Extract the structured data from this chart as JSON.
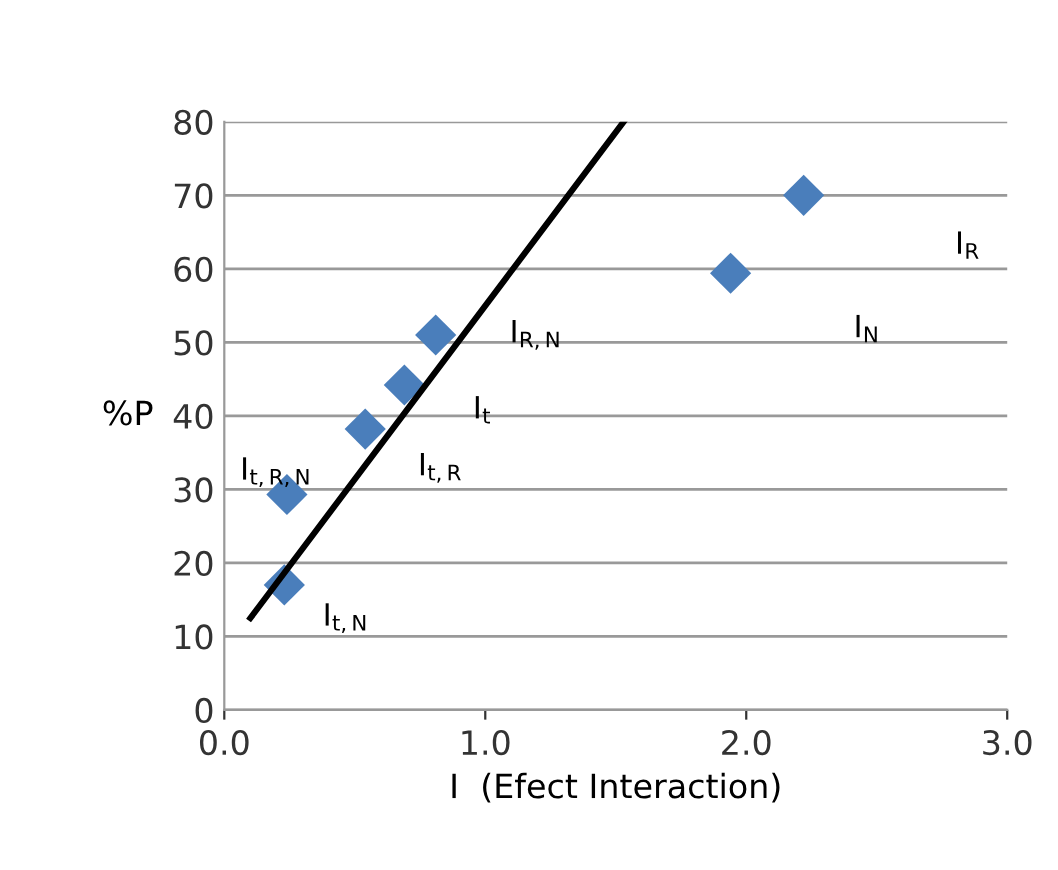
{
  "chart_data": {
    "type": "scatter",
    "xlabel": "I  (Efect Interaction)",
    "ylabel": "%P",
    "series": [
      {
        "color": "#4a7ebb",
        "marker": "diamond",
        "x": [
          0.23,
          0.24,
          0.54,
          0.69,
          0.81,
          1.94,
          2.22
        ],
        "values": [
          17,
          29.3,
          38.2,
          44.2,
          51,
          59.4,
          70
        ]
      },
      {
        "type": "line",
        "color": "#000000",
        "marker": "none",
        "line_style": "solid",
        "x": [
          0.1,
          1.53
        ],
        "values": [
          12.5,
          80
        ]
      }
    ],
    "annotations": [
      "I$_{t,N}$",
      "I$_{t,R,N}$",
      "I$_{t,R}$",
      "I$_{t}$",
      "I$_{R,N}$",
      "I$_{N}$",
      "I$_{R}$"
    ],
    "xlim": [
      0,
      3
    ],
    "xticks": [
      {
        "value": 0,
        "label": "0.0"
      },
      {
        "value": 1,
        "label": "1.0"
      },
      {
        "value": 2,
        "label": "2.0"
      },
      {
        "value": 3,
        "label": "3.0"
      }
    ],
    "ylim": [
      0,
      80
    ],
    "yticks": [
      0,
      10,
      20,
      30,
      40,
      50,
      60,
      70,
      80
    ],
    "grid": "y",
    "legend": false
  }
}
